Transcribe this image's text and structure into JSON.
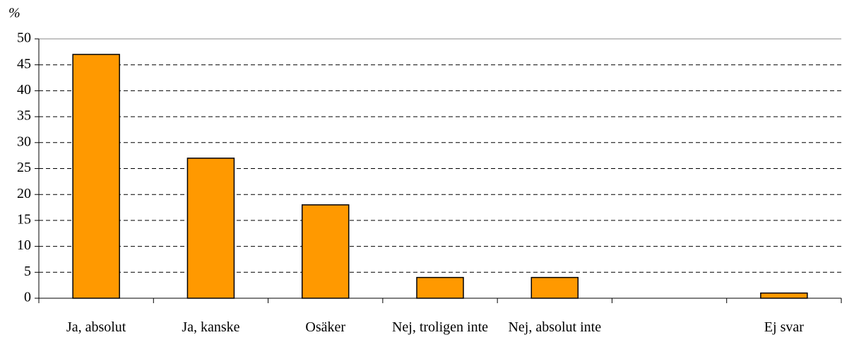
{
  "chart_data": {
    "type": "bar",
    "y_label": "%",
    "categories": [
      "Ja, absolut",
      "Ja, kanske",
      "Osäker",
      "Nej, troligen inte",
      "Nej, absolut inte",
      null,
      "Ej svar"
    ],
    "values": [
      47,
      27,
      18,
      4,
      4,
      null,
      1
    ],
    "color": "#ff9900",
    "ylim": [
      0,
      50
    ],
    "yticks": [
      0,
      5,
      10,
      15,
      20,
      25,
      30,
      35,
      40,
      45,
      50
    ],
    "grid": true
  }
}
